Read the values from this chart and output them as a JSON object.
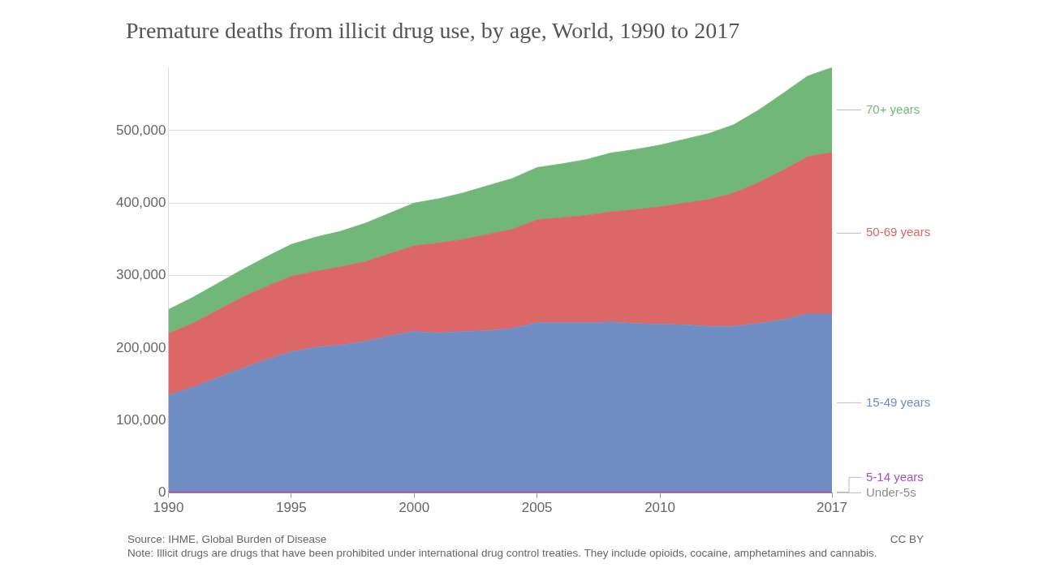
{
  "chart_data": {
    "type": "area",
    "title": "Premature deaths from illicit drug use, by age, World, 1990 to 2017",
    "stacked": true,
    "x": [
      1990,
      1991,
      1992,
      1993,
      1994,
      1995,
      1996,
      1997,
      1998,
      1999,
      2000,
      2001,
      2002,
      2003,
      2004,
      2005,
      2006,
      2007,
      2008,
      2009,
      2010,
      2011,
      2012,
      2013,
      2014,
      2015,
      2016,
      2017
    ],
    "series": [
      {
        "name": "Under-5s",
        "color": "#8c8c8c",
        "values": [
          500,
          500,
          500,
          500,
          500,
          500,
          500,
          500,
          500,
          500,
          500,
          500,
          500,
          500,
          500,
          500,
          500,
          500,
          500,
          500,
          500,
          500,
          500,
          500,
          500,
          500,
          500,
          500
        ]
      },
      {
        "name": "5-14 years",
        "color": "#a652ba",
        "values": [
          1500,
          1500,
          1500,
          1500,
          1500,
          1500,
          1500,
          1500,
          1500,
          1500,
          1500,
          1500,
          1500,
          1500,
          1500,
          1500,
          1500,
          1500,
          1500,
          1500,
          1500,
          1500,
          1500,
          1500,
          1500,
          1500,
          1500,
          1500
        ]
      },
      {
        "name": "15-49 years",
        "color": "#6f8dc2",
        "values": [
          133000,
          144000,
          157000,
          170000,
          182000,
          193000,
          199000,
          202000,
          207000,
          215000,
          221000,
          219000,
          221000,
          222000,
          225000,
          233000,
          233000,
          233000,
          234000,
          232000,
          231000,
          230000,
          228000,
          228000,
          232000,
          237000,
          245000,
          245000
        ]
      },
      {
        "name": "50-69 years",
        "color": "#db6767",
        "values": [
          85000,
          88000,
          93000,
          98000,
          101000,
          104000,
          105000,
          108000,
          110000,
          113000,
          118000,
          124000,
          127000,
          133000,
          137000,
          142000,
          145000,
          148000,
          152000,
          157000,
          162000,
          168000,
          175000,
          184000,
          194000,
          206000,
          217000,
          223000
        ]
      },
      {
        "name": "70+ years",
        "color": "#72b77a",
        "values": [
          33000,
          36000,
          37000,
          38000,
          41000,
          44000,
          47000,
          49000,
          53000,
          56000,
          59000,
          61000,
          64000,
          67000,
          70000,
          72000,
          74000,
          77000,
          81000,
          83000,
          85000,
          88000,
          91000,
          94000,
          100000,
          106000,
          111000,
          117000
        ]
      }
    ],
    "xlim": [
      1990,
      2017
    ],
    "xticks": [
      1990,
      1995,
      2000,
      2005,
      2010,
      2017
    ],
    "ylim": [
      0,
      587000
    ],
    "yticks": [
      {
        "value": 0,
        "label": "0"
      },
      {
        "value": 100000,
        "label": "100,000"
      },
      {
        "value": 200000,
        "label": "200,000"
      },
      {
        "value": 300000,
        "label": "300,000"
      },
      {
        "value": 400000,
        "label": "400,000"
      },
      {
        "value": 500000,
        "label": "500,000"
      }
    ],
    "grid": "y",
    "line_style": "solid",
    "marker": "none",
    "annotations": [
      "Source: IHME, Global Burden of Disease",
      "CC BY",
      "Note: Illicit drugs are drugs that have been prohibited under international drug control treaties. They include opioids, cocaine, amphetamines and cannabis."
    ]
  }
}
